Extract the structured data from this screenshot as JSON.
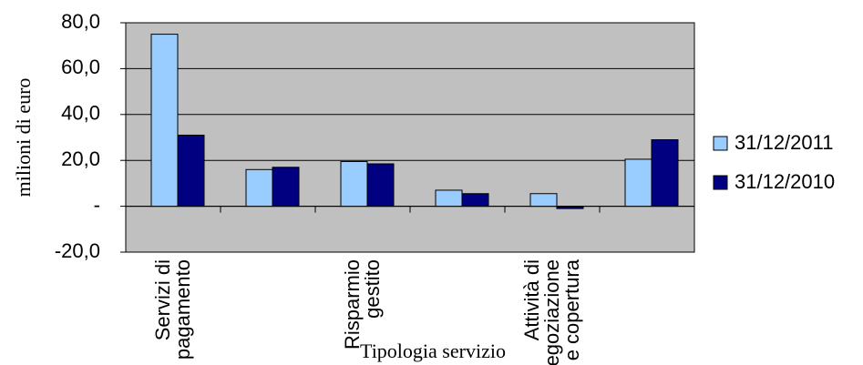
{
  "chart_data": {
    "type": "bar",
    "y_label": "milioni di euro",
    "x_label": "Tipologia servizio",
    "categories": [
      "Servizi di pagamento",
      null,
      "Risparmio gestito",
      null,
      "Attività di negoziazione e copertura",
      null
    ],
    "series": [
      {
        "name": "31/12/2011",
        "color": "#99ccff",
        "values": [
          75,
          16,
          19.5,
          7,
          5.5,
          20.5
        ]
      },
      {
        "name": "31/12/2010",
        "color": "#000080",
        "values": [
          31,
          17,
          18.5,
          5.5,
          -1,
          29
        ]
      }
    ],
    "ylim": [
      -20,
      80
    ],
    "yticks": [
      {
        "value": -20,
        "label": "-20,0"
      },
      {
        "value": 0,
        "label": "-"
      },
      {
        "value": 20,
        "label": "20,0"
      },
      {
        "value": 40,
        "label": "40,0"
      },
      {
        "value": 60,
        "label": "60,0"
      },
      {
        "value": 80,
        "label": "80,0"
      }
    ],
    "grid": true,
    "legend": "right"
  }
}
